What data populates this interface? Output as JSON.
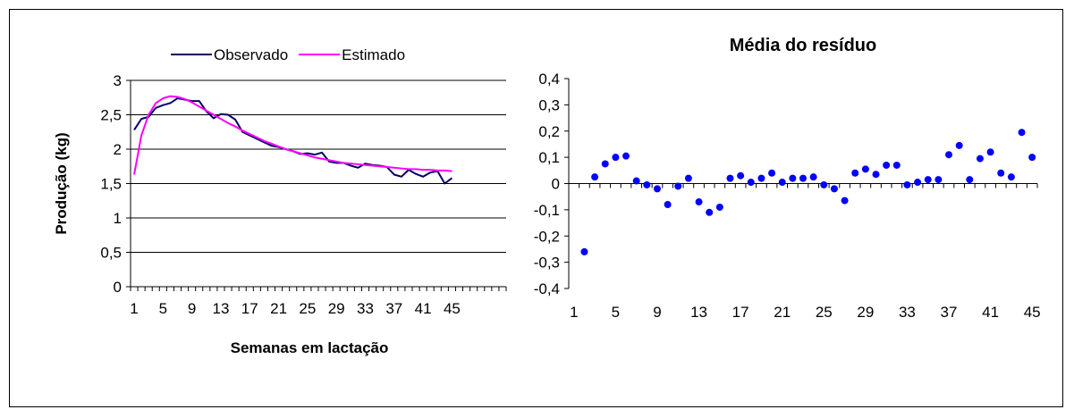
{
  "chart_data": [
    {
      "type": "line",
      "title": "",
      "xlabel": "Semanas em lactação",
      "ylabel": "Produção (kg)",
      "ylim": [
        0,
        3
      ],
      "yticks": [
        "0",
        "0,5",
        "1",
        "1,5",
        "2",
        "2,5",
        "3"
      ],
      "xtick_labels": [
        "1",
        "5",
        "9",
        "13",
        "17",
        "21",
        "25",
        "29",
        "33",
        "37",
        "41",
        "45"
      ],
      "grid": "horizontal",
      "legend_position": "top",
      "series": [
        {
          "name": "Observado",
          "color": "#000066",
          "x": [
            1,
            2,
            3,
            4,
            5,
            6,
            7,
            8,
            9,
            10,
            11,
            12,
            13,
            14,
            15,
            16,
            17,
            18,
            19,
            20,
            21,
            22,
            23,
            24,
            25,
            26,
            27,
            28,
            29,
            30,
            31,
            32,
            33,
            34,
            35,
            36,
            37,
            38,
            39,
            40,
            41,
            42,
            43,
            44,
            45
          ],
          "values": [
            2.28,
            2.44,
            2.47,
            2.6,
            2.64,
            2.67,
            2.74,
            2.72,
            2.7,
            2.7,
            2.55,
            2.45,
            2.51,
            2.5,
            2.43,
            2.25,
            2.2,
            2.15,
            2.1,
            2.05,
            2.03,
            2.0,
            1.97,
            1.93,
            1.94,
            1.92,
            1.95,
            1.82,
            1.8,
            1.8,
            1.76,
            1.73,
            1.79,
            1.77,
            1.76,
            1.74,
            1.63,
            1.6,
            1.7,
            1.64,
            1.6,
            1.66,
            1.68,
            1.5,
            1.58
          ]
        },
        {
          "name": "Estimado",
          "color": "#ff00ff",
          "x": [
            1,
            2,
            3,
            4,
            5,
            6,
            7,
            8,
            9,
            10,
            11,
            12,
            13,
            14,
            15,
            16,
            17,
            18,
            19,
            20,
            21,
            22,
            23,
            24,
            25,
            26,
            27,
            28,
            29,
            30,
            31,
            32,
            33,
            34,
            35,
            36,
            37,
            38,
            39,
            40,
            41,
            42,
            43,
            44,
            45
          ],
          "values": [
            1.63,
            2.2,
            2.5,
            2.67,
            2.74,
            2.77,
            2.76,
            2.73,
            2.68,
            2.62,
            2.56,
            2.5,
            2.44,
            2.38,
            2.33,
            2.27,
            2.22,
            2.17,
            2.12,
            2.08,
            2.04,
            2.0,
            1.97,
            1.94,
            1.91,
            1.88,
            1.86,
            1.84,
            1.82,
            1.8,
            1.79,
            1.78,
            1.77,
            1.76,
            1.75,
            1.74,
            1.73,
            1.72,
            1.71,
            1.71,
            1.7,
            1.7,
            1.69,
            1.69,
            1.68
          ]
        }
      ]
    },
    {
      "type": "scatter",
      "title": "Média do resíduo",
      "xlabel": "",
      "ylabel": "",
      "ylim": [
        -0.4,
        0.4
      ],
      "yticks": [
        "-0,4",
        "-0,3",
        "-0,2",
        "-0,1",
        "0",
        "0,1",
        "0,2",
        "0,3",
        "0,4"
      ],
      "xtick_labels": [
        "1",
        "5",
        "9",
        "13",
        "17",
        "21",
        "25",
        "29",
        "33",
        "37",
        "41",
        "45"
      ],
      "grid": "none",
      "color": "#0000ff",
      "series": [
        {
          "x": [
            2,
            3,
            4,
            5,
            6,
            7,
            8,
            9,
            10,
            11,
            12,
            13,
            14,
            15,
            16,
            17,
            18,
            19,
            20,
            21,
            22,
            23,
            24,
            25,
            26,
            27,
            28,
            29,
            30,
            31,
            32,
            33,
            34,
            35,
            36,
            37,
            38,
            39,
            40,
            41,
            42,
            43,
            44,
            45
          ],
          "values": [
            -0.26,
            0.025,
            0.075,
            0.1,
            0.105,
            0.01,
            -0.005,
            -0.02,
            -0.08,
            -0.01,
            0.02,
            -0.07,
            -0.11,
            -0.09,
            0.02,
            0.03,
            0.005,
            0.02,
            0.04,
            0.005,
            0.02,
            0.02,
            0.025,
            -0.005,
            -0.02,
            -0.065,
            0.04,
            0.055,
            0.035,
            0.07,
            0.07,
            -0.005,
            0.005,
            0.015,
            0.015,
            0.11,
            0.145,
            0.015,
            0.095,
            0.12,
            0.04,
            0.025,
            0.195,
            0.1
          ]
        }
      ]
    }
  ]
}
